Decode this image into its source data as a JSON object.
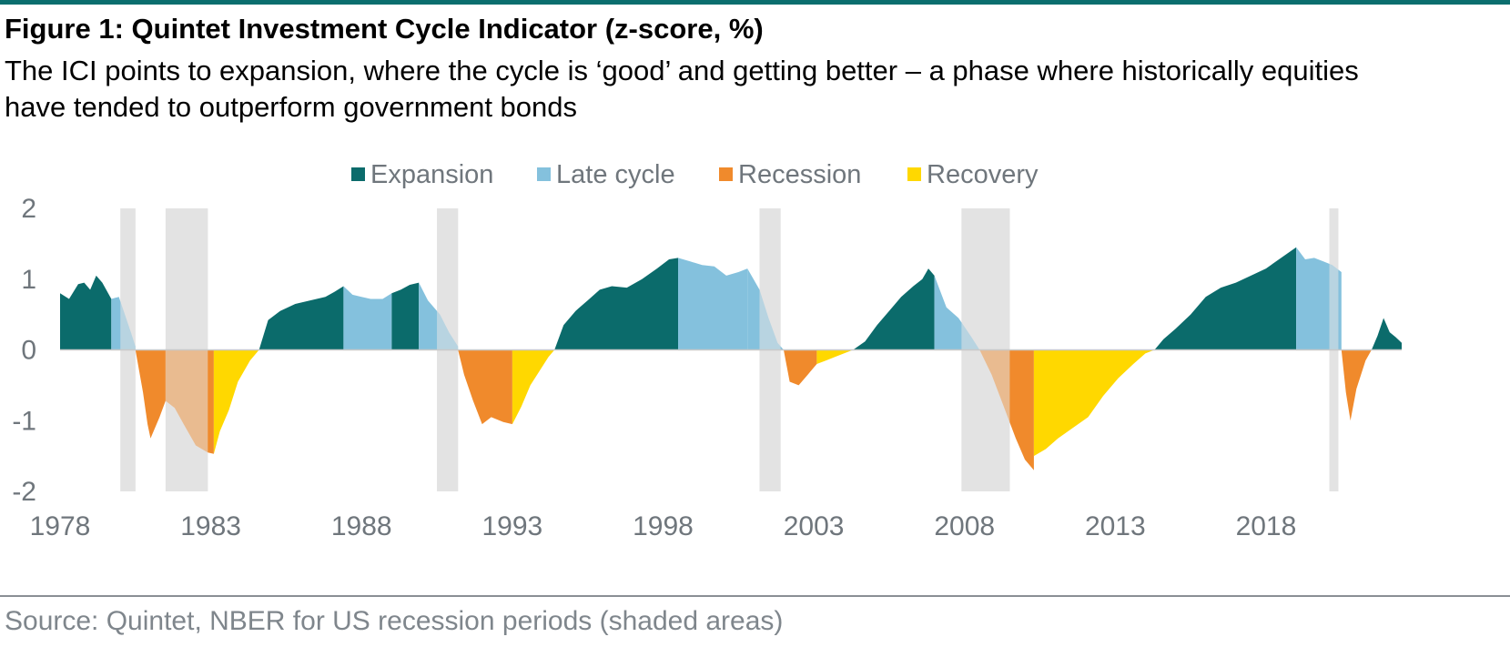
{
  "header": {
    "title": "Figure 1: Quintet Investment Cycle Indicator (z-score, %)",
    "subtitle": "The ICI points to expansion, where the cycle is ‘good’ and getting better – a phase where historically equities have tended to outperform government bonds"
  },
  "footer": {
    "source": "Source: Quintet, NBER for US recession periods (shaded areas)"
  },
  "colors": {
    "Expansion": "#0b6b6b",
    "Late cycle": "#84c1dd",
    "Recession": "#f08a2c",
    "Recovery": "#ffd800",
    "recession_shading": "#e3e3e3",
    "recession_overlay": "#dfc0a2"
  },
  "chart_data": {
    "type": "area",
    "x_start": 1978,
    "x_end": 2022.5,
    "xlim": [
      1978,
      2022.5
    ],
    "ylim": [
      -2,
      2
    ],
    "x_ticks": [
      1978,
      1983,
      1988,
      1993,
      1998,
      2003,
      2008,
      2013,
      2018
    ],
    "y_ticks": [
      2,
      1,
      0,
      -1,
      -2
    ],
    "legend": [
      "Expansion",
      "Late cycle",
      "Recession",
      "Recovery"
    ],
    "legend_position": "top",
    "grid": false,
    "recession_periods": [
      [
        1980.0,
        1980.5
      ],
      [
        1981.5,
        1982.9
      ],
      [
        1990.5,
        1991.2
      ],
      [
        2001.2,
        2001.9
      ],
      [
        2007.9,
        2009.5
      ],
      [
        2020.1,
        2020.4
      ]
    ],
    "segments": [
      {
        "phase": "Expansion",
        "points": [
          [
            1978.0,
            0.8
          ],
          [
            1978.3,
            0.72
          ],
          [
            1978.6,
            0.93
          ],
          [
            1978.8,
            0.95
          ],
          [
            1979.0,
            0.85
          ],
          [
            1979.2,
            1.05
          ],
          [
            1979.4,
            0.95
          ],
          [
            1979.7,
            0.72
          ]
        ]
      },
      {
        "phase": "Late cycle",
        "points": [
          [
            1979.7,
            0.72
          ],
          [
            1979.95,
            0.75
          ],
          [
            1980.15,
            0.5
          ],
          [
            1980.35,
            0.25
          ],
          [
            1980.5,
            0.05
          ]
        ]
      },
      {
        "phase": "Recession",
        "points": [
          [
            1980.5,
            0.0
          ],
          [
            1980.75,
            -0.6
          ],
          [
            1980.9,
            -1.05
          ],
          [
            1981.0,
            -1.25
          ],
          [
            1981.3,
            -0.95
          ],
          [
            1981.5,
            -0.72
          ]
        ]
      },
      {
        "phase": "Recession",
        "points": [
          [
            1981.5,
            -0.72
          ],
          [
            1981.8,
            -0.82
          ],
          [
            1982.1,
            -1.05
          ],
          [
            1982.5,
            -1.35
          ],
          [
            1982.9,
            -1.45
          ],
          [
            1983.1,
            -1.47
          ]
        ]
      },
      {
        "phase": "Recovery",
        "points": [
          [
            1983.1,
            -1.47
          ],
          [
            1983.3,
            -1.15
          ],
          [
            1983.6,
            -0.85
          ],
          [
            1983.9,
            -0.45
          ],
          [
            1984.3,
            -0.15
          ],
          [
            1984.6,
            0.0
          ]
        ]
      },
      {
        "phase": "Expansion",
        "points": [
          [
            1984.6,
            0.0
          ],
          [
            1984.9,
            0.42
          ],
          [
            1985.3,
            0.55
          ],
          [
            1985.8,
            0.65
          ],
          [
            1986.3,
            0.7
          ],
          [
            1986.8,
            0.75
          ],
          [
            1987.1,
            0.82
          ],
          [
            1987.4,
            0.9
          ]
        ]
      },
      {
        "phase": "Late cycle",
        "points": [
          [
            1987.4,
            0.9
          ],
          [
            1987.7,
            0.78
          ],
          [
            1988.0,
            0.75
          ],
          [
            1988.3,
            0.72
          ],
          [
            1988.7,
            0.72
          ],
          [
            1989.0,
            0.8
          ]
        ]
      },
      {
        "phase": "Expansion",
        "points": [
          [
            1989.0,
            0.8
          ],
          [
            1989.3,
            0.85
          ],
          [
            1989.6,
            0.92
          ],
          [
            1989.9,
            0.95
          ]
        ]
      },
      {
        "phase": "Late cycle",
        "points": [
          [
            1989.9,
            0.95
          ],
          [
            1990.2,
            0.7
          ],
          [
            1990.6,
            0.5
          ],
          [
            1990.9,
            0.25
          ],
          [
            1991.2,
            0.05
          ]
        ]
      },
      {
        "phase": "Recession",
        "points": [
          [
            1991.2,
            0.0
          ],
          [
            1991.4,
            -0.35
          ],
          [
            1991.7,
            -0.72
          ],
          [
            1992.0,
            -1.05
          ],
          [
            1992.3,
            -0.95
          ],
          [
            1992.7,
            -1.02
          ],
          [
            1993.0,
            -1.05
          ]
        ]
      },
      {
        "phase": "Recovery",
        "points": [
          [
            1993.0,
            -1.05
          ],
          [
            1993.3,
            -0.8
          ],
          [
            1993.6,
            -0.5
          ],
          [
            1993.9,
            -0.3
          ],
          [
            1994.2,
            -0.1
          ],
          [
            1994.4,
            0.0
          ]
        ]
      },
      {
        "phase": "Expansion",
        "points": [
          [
            1994.4,
            0.0
          ],
          [
            1994.7,
            0.35
          ],
          [
            1995.1,
            0.55
          ],
          [
            1995.5,
            0.7
          ],
          [
            1995.9,
            0.85
          ],
          [
            1996.3,
            0.9
          ],
          [
            1996.8,
            0.88
          ],
          [
            1997.3,
            1.0
          ],
          [
            1997.8,
            1.15
          ],
          [
            1998.2,
            1.28
          ],
          [
            1998.5,
            1.3
          ]
        ]
      },
      {
        "phase": "Late cycle",
        "points": [
          [
            1998.5,
            1.3
          ],
          [
            1998.9,
            1.25
          ],
          [
            1999.3,
            1.2
          ],
          [
            1999.7,
            1.18
          ],
          [
            2000.1,
            1.05
          ],
          [
            2000.5,
            1.1
          ],
          [
            2000.8,
            1.15
          ]
        ]
      },
      {
        "phase": "Late cycle",
        "points": [
          [
            2000.8,
            1.15
          ],
          [
            2001.2,
            0.85
          ],
          [
            2001.5,
            0.45
          ],
          [
            2001.8,
            0.1
          ],
          [
            2002.0,
            0.0
          ]
        ]
      },
      {
        "phase": "Recession",
        "points": [
          [
            2002.0,
            0.0
          ],
          [
            2002.2,
            -0.45
          ],
          [
            2002.5,
            -0.5
          ],
          [
            2002.8,
            -0.35
          ],
          [
            2003.1,
            -0.2
          ]
        ]
      },
      {
        "phase": "Recovery",
        "points": [
          [
            2003.1,
            -0.2
          ],
          [
            2003.4,
            -0.15
          ],
          [
            2003.7,
            -0.1
          ],
          [
            2004.0,
            -0.05
          ],
          [
            2004.3,
            0.0
          ]
        ]
      },
      {
        "phase": "Expansion",
        "points": [
          [
            2004.3,
            0.0
          ],
          [
            2004.7,
            0.12
          ],
          [
            2005.1,
            0.35
          ],
          [
            2005.5,
            0.55
          ],
          [
            2005.9,
            0.75
          ],
          [
            2006.3,
            0.9
          ],
          [
            2006.6,
            1.0
          ],
          [
            2006.8,
            1.15
          ],
          [
            2007.0,
            1.05
          ]
        ]
      },
      {
        "phase": "Late cycle",
        "points": [
          [
            2007.0,
            1.05
          ],
          [
            2007.4,
            0.6
          ],
          [
            2007.8,
            0.45
          ],
          [
            2008.2,
            0.2
          ],
          [
            2008.5,
            0.0
          ]
        ]
      },
      {
        "phase": "Recession",
        "points": [
          [
            2008.5,
            0.0
          ],
          [
            2008.9,
            -0.35
          ],
          [
            2009.3,
            -0.8
          ],
          [
            2009.7,
            -1.25
          ],
          [
            2010.0,
            -1.55
          ],
          [
            2010.3,
            -1.7
          ]
        ]
      },
      {
        "phase": "Recovery",
        "points": [
          [
            2010.3,
            -1.5
          ],
          [
            2010.7,
            -1.4
          ],
          [
            2011.1,
            -1.25
          ],
          [
            2011.6,
            -1.1
          ],
          [
            2012.1,
            -0.95
          ],
          [
            2012.6,
            -0.65
          ],
          [
            2013.1,
            -0.4
          ],
          [
            2013.6,
            -0.2
          ],
          [
            2014.0,
            -0.05
          ],
          [
            2014.3,
            0.0
          ]
        ]
      },
      {
        "phase": "Expansion",
        "points": [
          [
            2014.3,
            0.0
          ],
          [
            2014.6,
            0.15
          ],
          [
            2015.0,
            0.3
          ],
          [
            2015.5,
            0.5
          ],
          [
            2016.0,
            0.75
          ],
          [
            2016.5,
            0.88
          ],
          [
            2017.0,
            0.95
          ],
          [
            2017.5,
            1.05
          ],
          [
            2018.0,
            1.15
          ],
          [
            2018.5,
            1.3
          ],
          [
            2019.0,
            1.45
          ]
        ]
      },
      {
        "phase": "Late cycle",
        "points": [
          [
            2019.0,
            1.45
          ],
          [
            2019.3,
            1.28
          ],
          [
            2019.6,
            1.3
          ],
          [
            2019.9,
            1.25
          ],
          [
            2020.2,
            1.2
          ],
          [
            2020.5,
            1.1
          ]
        ]
      },
      {
        "phase": "Recession",
        "points": [
          [
            2020.5,
            0.0
          ],
          [
            2020.65,
            -0.6
          ],
          [
            2020.8,
            -1.0
          ],
          [
            2021.0,
            -0.55
          ],
          [
            2021.3,
            -0.15
          ],
          [
            2021.5,
            0.0
          ]
        ]
      },
      {
        "phase": "Expansion",
        "points": [
          [
            2021.5,
            0.0
          ],
          [
            2021.7,
            0.2
          ],
          [
            2021.9,
            0.45
          ],
          [
            2022.1,
            0.25
          ],
          [
            2022.3,
            0.18
          ],
          [
            2022.5,
            0.1
          ]
        ]
      }
    ]
  }
}
